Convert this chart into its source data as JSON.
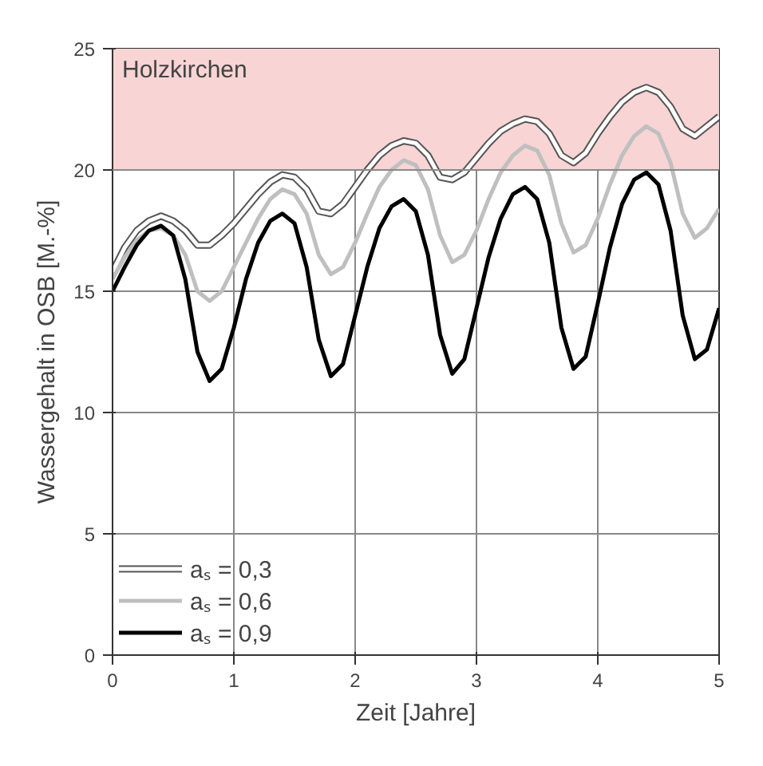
{
  "chart_data": {
    "type": "line",
    "xlabel": "Zeit [Jahre]",
    "ylabel": "Wassergehalt in OSB [M.-%]",
    "x": [
      0,
      0.1,
      0.2,
      0.3,
      0.4,
      0.5,
      0.6,
      0.7,
      0.8,
      0.9,
      1.0,
      1.1,
      1.2,
      1.3,
      1.4,
      1.5,
      1.6,
      1.7,
      1.8,
      1.9,
      2.0,
      2.1,
      2.2,
      2.3,
      2.4,
      2.5,
      2.6,
      2.7,
      2.8,
      2.9,
      3.0,
      3.1,
      3.2,
      3.3,
      3.4,
      3.5,
      3.6,
      3.7,
      3.8,
      3.9,
      4.0,
      4.1,
      4.2,
      4.3,
      4.4,
      4.5,
      4.6,
      4.7,
      4.8,
      4.9,
      5.0
    ],
    "series": [
      {
        "name": "aₛ = 0,3",
        "color": "#ffffff",
        "values": [
          15.8,
          16.8,
          17.5,
          17.9,
          18.1,
          17.9,
          17.5,
          16.9,
          16.9,
          17.3,
          17.8,
          18.4,
          19.0,
          19.5,
          19.8,
          19.7,
          19.2,
          18.3,
          18.2,
          18.6,
          19.3,
          20.0,
          20.6,
          21.0,
          21.2,
          21.1,
          20.6,
          19.7,
          19.6,
          19.9,
          20.5,
          21.1,
          21.6,
          21.9,
          22.1,
          22.0,
          21.5,
          20.6,
          20.3,
          20.7,
          21.5,
          22.2,
          22.8,
          23.2,
          23.4,
          23.2,
          22.6,
          21.7,
          21.4,
          21.8,
          22.2
        ]
      },
      {
        "name": "aₛ = 0,6",
        "color": "#bfbfbf",
        "values": [
          15.5,
          16.4,
          17.1,
          17.5,
          17.6,
          17.3,
          16.5,
          15.0,
          14.6,
          15.0,
          16.0,
          17.0,
          18.0,
          18.8,
          19.2,
          19.0,
          18.2,
          16.5,
          15.7,
          16.0,
          17.0,
          18.2,
          19.3,
          20.0,
          20.4,
          20.2,
          19.2,
          17.3,
          16.2,
          16.5,
          17.5,
          18.8,
          19.9,
          20.6,
          21.0,
          20.8,
          19.8,
          17.8,
          16.6,
          16.9,
          18.0,
          19.4,
          20.6,
          21.4,
          21.8,
          21.5,
          20.3,
          18.2,
          17.2,
          17.6,
          18.4
        ]
      },
      {
        "name": "aₛ = 0,9",
        "color": "#000000",
        "values": [
          15.0,
          16.0,
          16.9,
          17.5,
          17.7,
          17.3,
          15.5,
          12.5,
          11.3,
          11.8,
          13.5,
          15.5,
          17.0,
          17.9,
          18.2,
          17.8,
          16.0,
          13.0,
          11.5,
          12.0,
          14.0,
          16.0,
          17.6,
          18.5,
          18.8,
          18.3,
          16.5,
          13.2,
          11.6,
          12.2,
          14.3,
          16.4,
          18.0,
          19.0,
          19.3,
          18.8,
          17.0,
          13.5,
          11.8,
          12.3,
          14.5,
          16.8,
          18.6,
          19.6,
          19.9,
          19.4,
          17.5,
          14.0,
          12.2,
          12.6,
          14.3
        ]
      }
    ],
    "xlim": [
      0,
      5
    ],
    "ylim": [
      0,
      25
    ],
    "xticks": [
      0,
      1,
      2,
      3,
      4,
      5
    ],
    "yticks": [
      0,
      5,
      10,
      15,
      20,
      25
    ],
    "bands": [
      {
        "axis": "y",
        "from": 20,
        "to": 25,
        "label": "Holzkirchen",
        "color": "#f8d4d4"
      }
    ],
    "grid": true,
    "legend": "bottom left",
    "line_style": "solid",
    "marker": "none"
  }
}
